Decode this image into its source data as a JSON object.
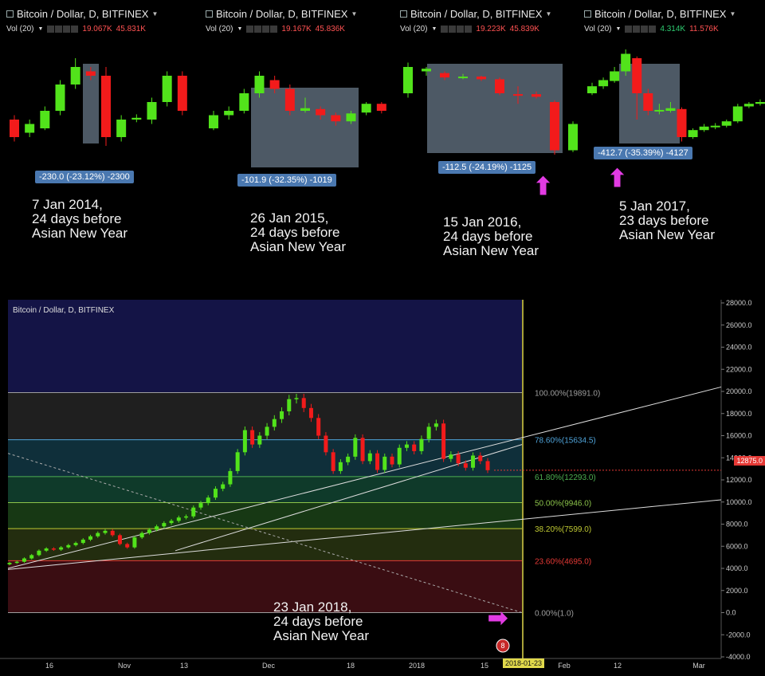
{
  "panels": [
    {
      "title": "Bitcoin / Dollar, D, BITFINEX",
      "vol_label": "Vol (20)",
      "vol_a": "19.067K",
      "vol_b": "45.831K",
      "vol_a_color": "#ff5252",
      "measure": "-230.0 (-23.12%) -2300",
      "note": [
        "7 Jan 2014,",
        "24 days before",
        "Asian New Year"
      ],
      "arrow": false
    },
    {
      "title": "Bitcoin / Dollar, D, BITFINEX",
      "vol_label": "Vol (20)",
      "vol_a": "19.167K",
      "vol_b": "45.836K",
      "vol_a_color": "#ff5252",
      "measure": "-101.9 (-32.35%) -1019",
      "note": [
        "26 Jan 2015,",
        "24 days before",
        "Asian New Year"
      ],
      "arrow": false
    },
    {
      "title": "Bitcoin / Dollar, D, BITFINEX",
      "vol_label": "Vol (20)",
      "vol_a": "19.223K",
      "vol_b": "45.839K",
      "vol_a_color": "#ff5252",
      "measure": "-112.5 (-24.19%) -1125",
      "note": [
        "15 Jan 2016,",
        "24 days before",
        "Asian New Year"
      ],
      "arrow": true
    },
    {
      "title": "Bitcoin / Dollar, D, BITFINEX",
      "vol_label": "Vol (20)",
      "vol_a": "4.314K",
      "vol_b": "11.576K",
      "vol_a_color": "#2ecc71",
      "measure": "-412.7 (-35.39%) -4127",
      "note": [
        "5 Jan 2017,",
        "23 days before",
        "Asian New Year"
      ],
      "arrow": true
    }
  ],
  "main": {
    "title": "Bitcoin / Dollar, D, BITFINEX",
    "note": [
      "23 Jan 2018,",
      "24 days before",
      "Asian New Year"
    ],
    "current_price": "12875.0",
    "date_marker": "2018-01-23",
    "fib_levels": [
      {
        "label": "100.00%(19891.0)",
        "value": 19891,
        "color": "#9e9e9e"
      },
      {
        "label": "78.60%(15634.5)",
        "value": 15634.5,
        "color": "#4fa3d9"
      },
      {
        "label": "61.80%(12293.0)",
        "value": 12293,
        "color": "#4caf50"
      },
      {
        "label": "50.00%(9946.0)",
        "value": 9946,
        "color": "#8bc34a"
      },
      {
        "label": "38.20%(7599.0)",
        "value": 7599,
        "color": "#c0ca33"
      },
      {
        "label": "23.60%(4695.0)",
        "value": 4695,
        "color": "#e53935"
      },
      {
        "label": "0.00%(1.0)",
        "value": 1,
        "color": "#9e9e9e"
      }
    ],
    "x_ticks": [
      "16",
      "Nov",
      "13",
      "Dec",
      "18",
      "2018",
      "15",
      "Feb",
      "12",
      "Mar"
    ],
    "badge": "8"
  },
  "chart_data": {
    "type": "line",
    "title": "Bitcoin / Dollar, D, BITFINEX",
    "xlabel": "",
    "ylabel": "",
    "ylim": [
      -4000,
      28000
    ],
    "y_ticks": [
      28000,
      26000,
      24000,
      22000,
      20000,
      18000,
      16000,
      14000,
      12000,
      10000,
      8000,
      6000,
      4000,
      2000,
      0,
      -2000,
      -4000
    ],
    "y_tick_labels": [
      "28000.0",
      "26000.0",
      "24000.0",
      "22000.0",
      "20000.0",
      "18000.0",
      "16000.0",
      "14000.0",
      "12000.0",
      "10000.0",
      "8000.0",
      "6000.0",
      "4000.0",
      "2000.0",
      "0.0",
      "-2000.0",
      "-4000.0"
    ],
    "series": [
      {
        "values": [
          4500,
          4600,
          4900,
          5200,
          5600,
          5800,
          5700,
          5900,
          6100,
          6300,
          6600,
          6900,
          7200,
          7400,
          7000,
          6200,
          5900,
          6800,
          7200,
          7500,
          7800,
          8100,
          8300,
          8600,
          8700,
          9500,
          9900,
          10400,
          11200,
          11600,
          12800,
          14500,
          16500,
          15200,
          16000,
          16800,
          17500,
          18200,
          19300,
          19400,
          18500,
          17600,
          16000,
          14500,
          12800,
          13600,
          14100,
          15800,
          13700,
          14400,
          12900,
          14100,
          13400,
          14900,
          15200,
          14600,
          15700,
          16800,
          17100,
          13900,
          14300,
          13500,
          13100,
          14200,
          13700,
          12875
        ]
      }
    ]
  }
}
